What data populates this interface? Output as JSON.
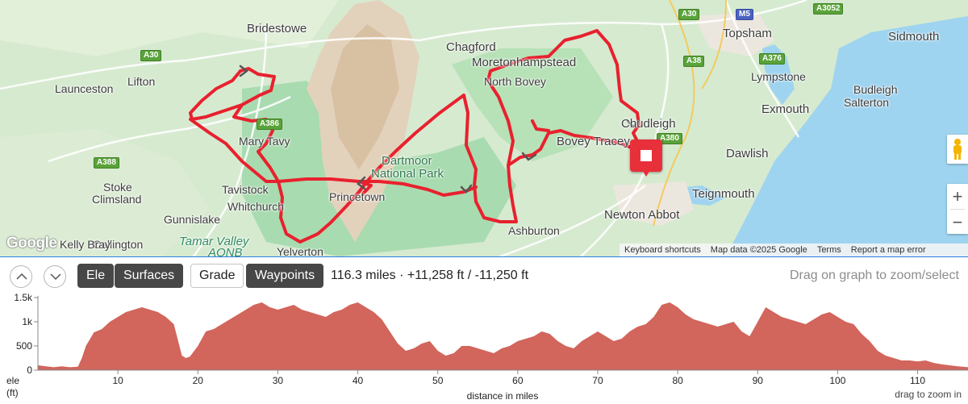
{
  "map": {
    "places": [
      {
        "name": "Bridestowe"
      },
      {
        "name": "Launceston"
      },
      {
        "name": "Lifton"
      },
      {
        "name": "Mary Tavy"
      },
      {
        "name": "Tavistock"
      },
      {
        "name": "Whitchurch"
      },
      {
        "name": "Stoke"
      },
      {
        "name": "Climsland"
      },
      {
        "name": "Gunnislake"
      },
      {
        "name": "Callington"
      },
      {
        "name": "Princetown"
      },
      {
        "name": "Yelverton"
      },
      {
        "name": "Chagford"
      },
      {
        "name": "Moretonhampstead"
      },
      {
        "name": "North Bovey"
      },
      {
        "name": "Bovey Tracey"
      },
      {
        "name": "Chudleigh"
      },
      {
        "name": "Ashburton"
      },
      {
        "name": "Newton Abbot"
      },
      {
        "name": "Teignmouth"
      },
      {
        "name": "Dawlish"
      },
      {
        "name": "Exmouth"
      },
      {
        "name": "Lympstone"
      },
      {
        "name": "Topsham"
      },
      {
        "name": "Sidmouth"
      },
      {
        "name": "Budleigh"
      },
      {
        "name": "Salterton"
      },
      {
        "name": "Kelly Bray"
      }
    ],
    "park_label_1": "Dartmoor",
    "park_label_2": "National Park",
    "tamar_label": "Tamar Valley",
    "tamar_label_2": "AONB",
    "roads": [
      "A30",
      "A386",
      "A388",
      "A30",
      "A38",
      "M5",
      "A3052",
      "A376",
      "A380"
    ],
    "logo": "Google",
    "route_color": "#e8212e",
    "attribution": {
      "shortcuts": "Keyboard shortcuts",
      "mapdata": "Map data ©2025 Google",
      "terms": "Terms",
      "report": "Report a map error"
    },
    "zoom_in": "+",
    "zoom_out": "−",
    "pegman_icon": "street-view-pegman-icon",
    "end_marker_icon": "stop-square-icon"
  },
  "toolbar": {
    "tabs": [
      {
        "label": "Ele",
        "active": true
      },
      {
        "label": "Surfaces",
        "active": true
      },
      {
        "label": "Grade",
        "active": false
      },
      {
        "label": "Waypoints",
        "active": true
      }
    ],
    "stats": "116.3 miles · +11,258 ft / -11,250 ft",
    "hint": "Drag on graph to zoom/select"
  },
  "chart_data": {
    "type": "area",
    "xlabel": "distance in miles",
    "ylabel": "ele",
    "ylabel_unit": "(ft)",
    "x_ticks": [
      "10",
      "20",
      "30",
      "40",
      "50",
      "60",
      "70",
      "80",
      "90",
      "100",
      "110"
    ],
    "y_ticks": [
      "0",
      "500",
      "1k",
      "1.5k"
    ],
    "xlim": [
      0,
      116.3
    ],
    "ylim": [
      0,
      1500
    ],
    "hint": "drag to zoom in",
    "color": "#d2655c",
    "x": [
      0,
      1,
      2,
      3,
      4,
      5,
      5.5,
      6,
      7,
      8,
      9,
      10,
      11,
      12,
      13,
      14,
      15,
      16,
      17,
      18,
      18.5,
      19,
      20,
      21,
      22,
      23,
      24,
      25,
      26,
      27,
      28,
      29,
      30,
      31,
      32,
      33,
      34,
      35,
      36,
      37,
      38,
      39,
      40,
      41,
      42,
      43,
      44,
      45,
      46,
      47,
      48,
      49,
      50,
      51,
      52,
      53,
      54,
      55,
      56,
      57,
      58,
      59,
      60,
      61,
      62,
      63,
      64,
      65,
      66,
      67,
      68,
      69,
      70,
      71,
      72,
      73,
      74,
      75,
      76,
      77,
      78,
      79,
      80,
      81,
      82,
      83,
      84,
      85,
      86,
      87,
      88,
      89,
      90,
      91,
      92,
      93,
      94,
      95,
      96,
      97,
      98,
      99,
      100,
      101,
      102,
      103,
      104,
      105,
      106,
      107,
      108,
      109,
      110,
      111,
      112,
      113,
      114,
      115,
      116.3
    ],
    "y": [
      100,
      80,
      60,
      80,
      60,
      70,
      250,
      500,
      780,
      850,
      1000,
      1100,
      1200,
      1250,
      1300,
      1250,
      1200,
      1100,
      950,
      300,
      250,
      280,
      500,
      800,
      850,
      950,
      1050,
      1150,
      1250,
      1350,
      1400,
      1300,
      1250,
      1300,
      1350,
      1250,
      1200,
      1150,
      1100,
      1200,
      1250,
      1350,
      1400,
      1300,
      1200,
      1050,
      800,
      550,
      400,
      450,
      550,
      600,
      400,
      300,
      350,
      500,
      500,
      450,
      400,
      350,
      450,
      500,
      600,
      650,
      700,
      800,
      750,
      600,
      500,
      450,
      600,
      700,
      800,
      700,
      600,
      650,
      800,
      900,
      950,
      1100,
      1350,
      1400,
      1300,
      1150,
      1050,
      1000,
      950,
      900,
      950,
      1000,
      800,
      700,
      1000,
      1300,
      1200,
      1100,
      1050,
      1000,
      950,
      1050,
      1150,
      1200,
      1100,
      1000,
      950,
      750,
      600,
      400,
      300,
      250,
      200,
      200,
      180,
      200,
      150,
      120,
      100,
      80,
      60
    ]
  }
}
